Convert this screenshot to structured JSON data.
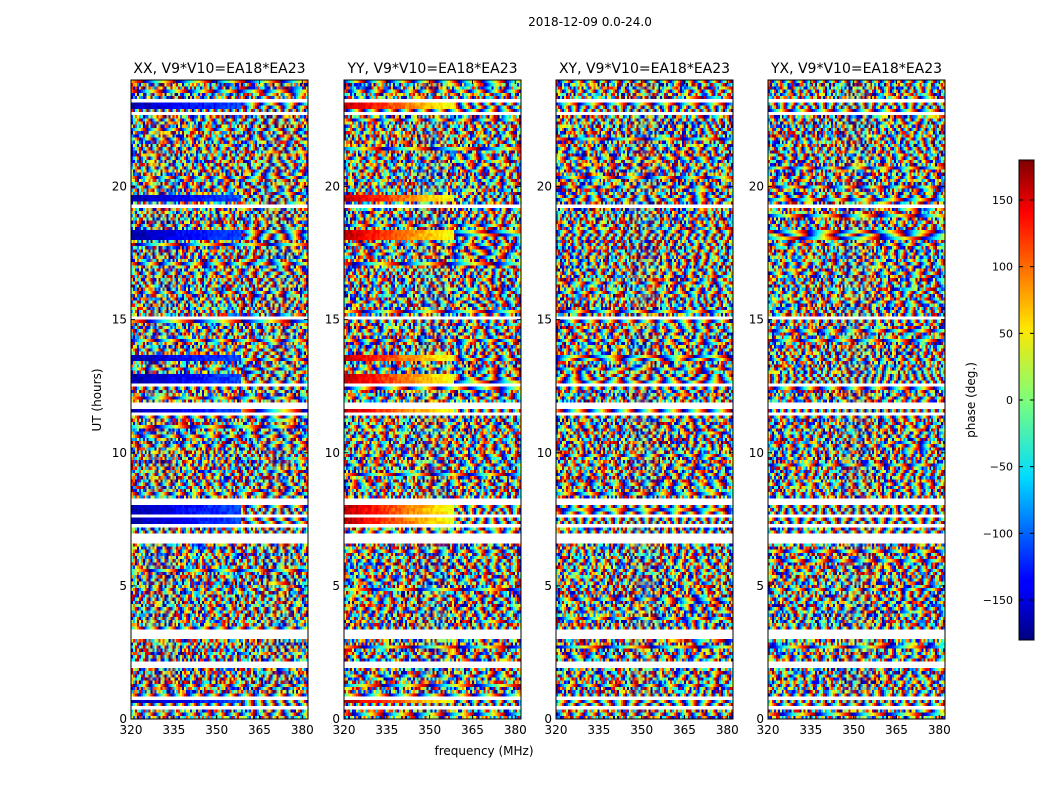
{
  "chart_data": {
    "type": "heatmap",
    "suptitle": "2018-12-09 0.0-24.0",
    "xlabel": "frequency (MHz)",
    "ylabel": "UT (hours)",
    "xlim": [
      320,
      382
    ],
    "ylim": [
      0,
      24
    ],
    "xticks": [
      320,
      335,
      350,
      365,
      380
    ],
    "yticks": [
      0,
      5,
      10,
      15,
      20
    ],
    "panels": [
      {
        "title": "XX, V9*V10=EA18*EA23",
        "pol": "XX"
      },
      {
        "title": "YY, V9*V10=EA18*EA23",
        "pol": "YY"
      },
      {
        "title": "XY, V9*V10=EA18*EA23",
        "pol": "XY"
      },
      {
        "title": "YX, V9*V10=EA18*EA23",
        "pol": "YX"
      }
    ],
    "colorbar": {
      "label": "phase (deg.)",
      "range": [
        -180,
        180
      ],
      "ticks": [
        150,
        100,
        50,
        0,
        -50,
        -100,
        -150
      ],
      "tick_labels": [
        "150",
        "100",
        "50",
        "0",
        "−50",
        "−100",
        "−150"
      ],
      "colormap": "jet"
    },
    "flagged_ut_bands": [
      [
        0.4,
        0.5
      ],
      [
        0.75,
        0.85
      ],
      [
        1.95,
        2.15
      ],
      [
        2.5,
        2.55
      ],
      [
        3.05,
        3.3
      ],
      [
        3.45,
        3.5
      ],
      [
        6.65,
        6.9
      ],
      [
        7.2,
        7.35
      ],
      [
        7.6,
        7.7
      ],
      [
        8.05,
        8.25
      ],
      [
        11.35,
        11.5
      ],
      [
        11.7,
        11.85
      ],
      [
        12.5,
        12.65
      ],
      [
        14.15,
        14.2
      ],
      [
        15.05,
        15.15
      ],
      [
        19.2,
        19.3
      ],
      [
        21.55,
        21.65
      ],
      [
        22.65,
        22.75
      ],
      [
        23.2,
        23.3
      ]
    ],
    "coherent_ut_bands": [
      [
        0.6,
        0.75
      ],
      [
        3.2,
        3.4
      ],
      [
        7.3,
        8.0
      ],
      [
        11.4,
        11.6
      ],
      [
        12.6,
        12.9
      ],
      [
        13.5,
        13.7
      ],
      [
        18.0,
        18.3
      ],
      [
        19.4,
        19.7
      ],
      [
        22.9,
        23.2
      ]
    ]
  }
}
